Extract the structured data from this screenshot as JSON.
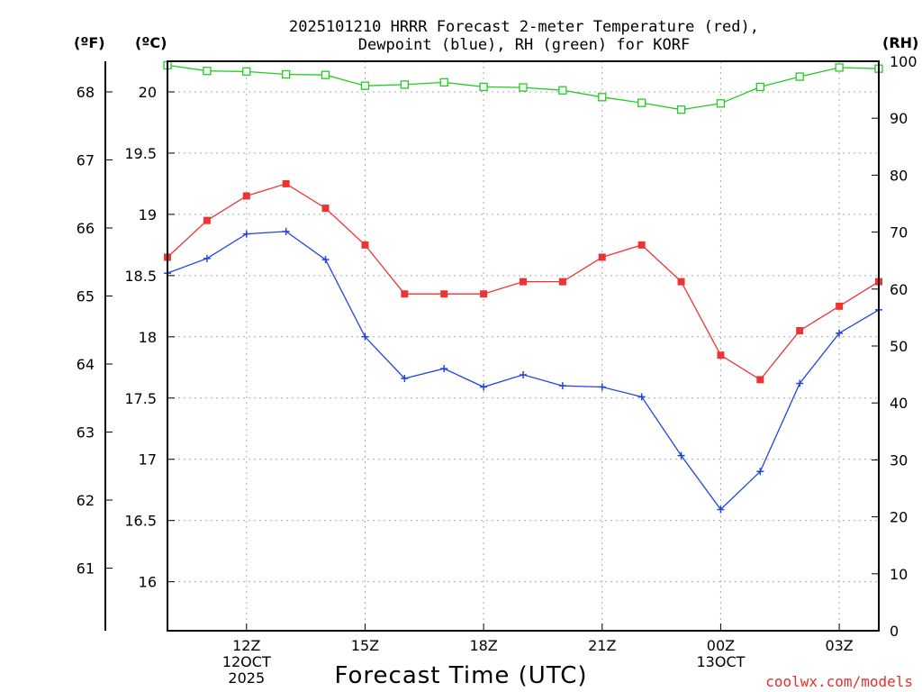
{
  "chart_data": {
    "type": "line",
    "title_line1": "2025101210 HRRR Forecast 2-meter Temperature (red),",
    "title_line2": "Dewpoint (blue), RH (green) for KORF",
    "xlabel": "Forecast Time (UTC)",
    "credit": "coolwx.com/models",
    "unit_f": "(ºF)",
    "unit_c": "(ºC)",
    "unit_rh": "(RH)",
    "x_hours": [
      10,
      11,
      12,
      13,
      14,
      15,
      16,
      17,
      18,
      19,
      20,
      21,
      22,
      23,
      24,
      25,
      26,
      27,
      28
    ],
    "x_range": [
      10,
      28
    ],
    "x_ticks": [
      {
        "hour": 12,
        "lines": [
          "12Z",
          "12OCT",
          "2025"
        ]
      },
      {
        "hour": 15,
        "lines": [
          "15Z"
        ]
      },
      {
        "hour": 18,
        "lines": [
          "18Z"
        ]
      },
      {
        "hour": 21,
        "lines": [
          "21Z"
        ]
      },
      {
        "hour": 24,
        "lines": [
          "00Z",
          "13OCT"
        ]
      },
      {
        "hour": 27,
        "lines": [
          "03Z"
        ]
      }
    ],
    "celsius_axis": {
      "range": [
        15.6,
        20.25
      ],
      "ticks": [
        "16",
        "16.5",
        "17",
        "17.5",
        "18",
        "18.5",
        "19",
        "19.5",
        "20"
      ]
    },
    "fahrenheit_axis": {
      "ticks": [
        "61",
        "62",
        "63",
        "64",
        "65",
        "66",
        "67",
        "68"
      ]
    },
    "rh_axis": {
      "range": [
        0,
        100
      ],
      "ticks": [
        "0",
        "10",
        "20",
        "30",
        "40",
        "50",
        "60",
        "70",
        "80",
        "90",
        "100"
      ]
    },
    "series": [
      {
        "name": "Temperature",
        "color": "#ee3333",
        "axis": "celsius",
        "marker": "filled-square",
        "values": [
          18.65,
          18.95,
          19.15,
          19.25,
          19.05,
          18.75,
          18.35,
          18.35,
          18.35,
          18.45,
          18.45,
          18.65,
          18.75,
          18.45,
          17.85,
          17.65,
          18.05,
          18.25,
          18.45
        ]
      },
      {
        "name": "Dewpoint",
        "color": "#2244dd",
        "axis": "celsius",
        "marker": "plus",
        "values": [
          18.52,
          18.64,
          18.84,
          18.86,
          18.63,
          18.0,
          17.66,
          17.74,
          17.59,
          17.69,
          17.6,
          17.59,
          17.51,
          17.03,
          16.59,
          16.9,
          17.62,
          18.03,
          18.22
        ]
      },
      {
        "name": "RH",
        "color": "#22cc22",
        "axis": "rh",
        "marker": "open-square",
        "values": [
          99.3,
          98.3,
          98.2,
          97.7,
          97.6,
          95.7,
          95.9,
          96.3,
          95.5,
          95.4,
          94.9,
          93.7,
          92.7,
          91.5,
          92.6,
          95.5,
          97.3,
          98.9,
          98.7
        ]
      }
    ],
    "grid": true
  }
}
